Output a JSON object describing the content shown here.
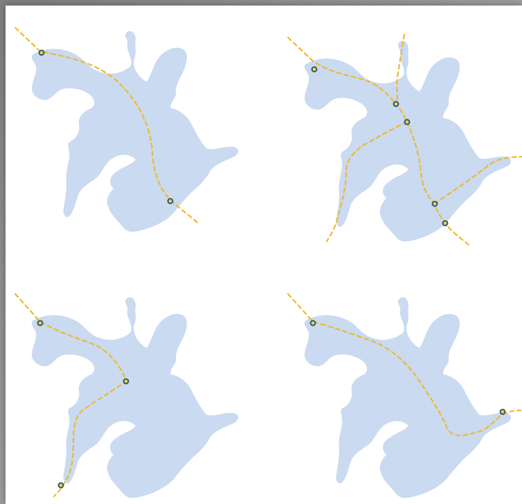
{
  "figure": {
    "lake_color": "#c9daf1",
    "route_color": "#f0b82d",
    "node_stroke": "#3f5268",
    "node_fill": "#d5de54",
    "panels": [
      {
        "name": "top-left",
        "route_count": 1,
        "node_count": 2
      },
      {
        "name": "top-right",
        "route_count": 3,
        "node_count": 5
      },
      {
        "name": "bottom-left",
        "route_count": 1,
        "node_count": 3
      },
      {
        "name": "bottom-right",
        "route_count": 1,
        "node_count": 2
      }
    ]
  }
}
